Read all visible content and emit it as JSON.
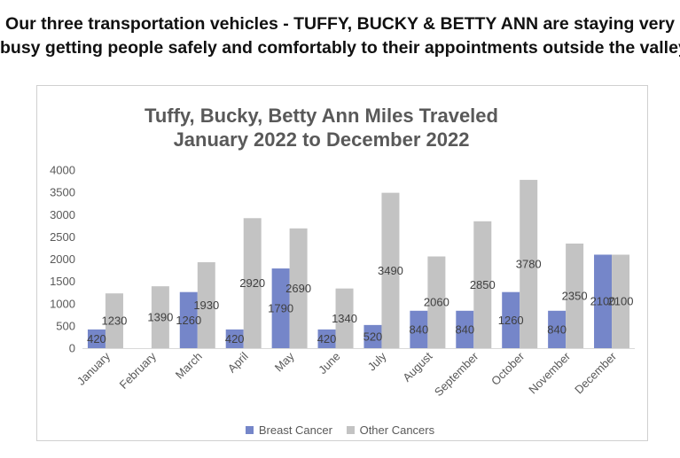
{
  "headline": {
    "line1": "Our three transportation vehicles  - TUFFY, BUCKY & BETTY ANN are staying very",
    "line2": "busy getting people safely and comfortably to their appointments outside the valley."
  },
  "chart_data": {
    "type": "bar",
    "title_line1": "Tuffy, Bucky, Betty Ann Miles Traveled",
    "title_line2": "January 2022 to December 2022",
    "categories": [
      "January",
      "February",
      "March",
      "April",
      "May",
      "June",
      "July",
      "August",
      "September",
      "October",
      "November",
      "December"
    ],
    "series": [
      {
        "name": "Breast Cancer",
        "color": "#7586c9",
        "values": [
          420,
          null,
          1260,
          420,
          1790,
          420,
          520,
          840,
          840,
          1260,
          840,
          2100
        ],
        "labels": [
          "420",
          "",
          "1260",
          "420",
          "1790",
          "420",
          "520",
          "840",
          "840",
          "1260",
          "840",
          "2100"
        ]
      },
      {
        "name": "Other Cancers",
        "color": "#c3c3c3",
        "values": [
          1230,
          1390,
          1930,
          2920,
          2690,
          1340,
          3490,
          2060,
          2850,
          3780,
          2350,
          2100
        ],
        "labels": [
          "1230",
          "1390",
          "1930",
          "2920",
          "2690",
          "1340",
          "3490",
          "2060",
          "2850",
          "3780",
          "2350",
          "2100"
        ]
      }
    ],
    "y_ticks": [
      "0",
      "500",
      "1000",
      "1500",
      "2000",
      "2500",
      "3000",
      "3500",
      "4000"
    ],
    "ylim": [
      0,
      4000
    ],
    "grid": false,
    "legend_position": "bottom"
  }
}
